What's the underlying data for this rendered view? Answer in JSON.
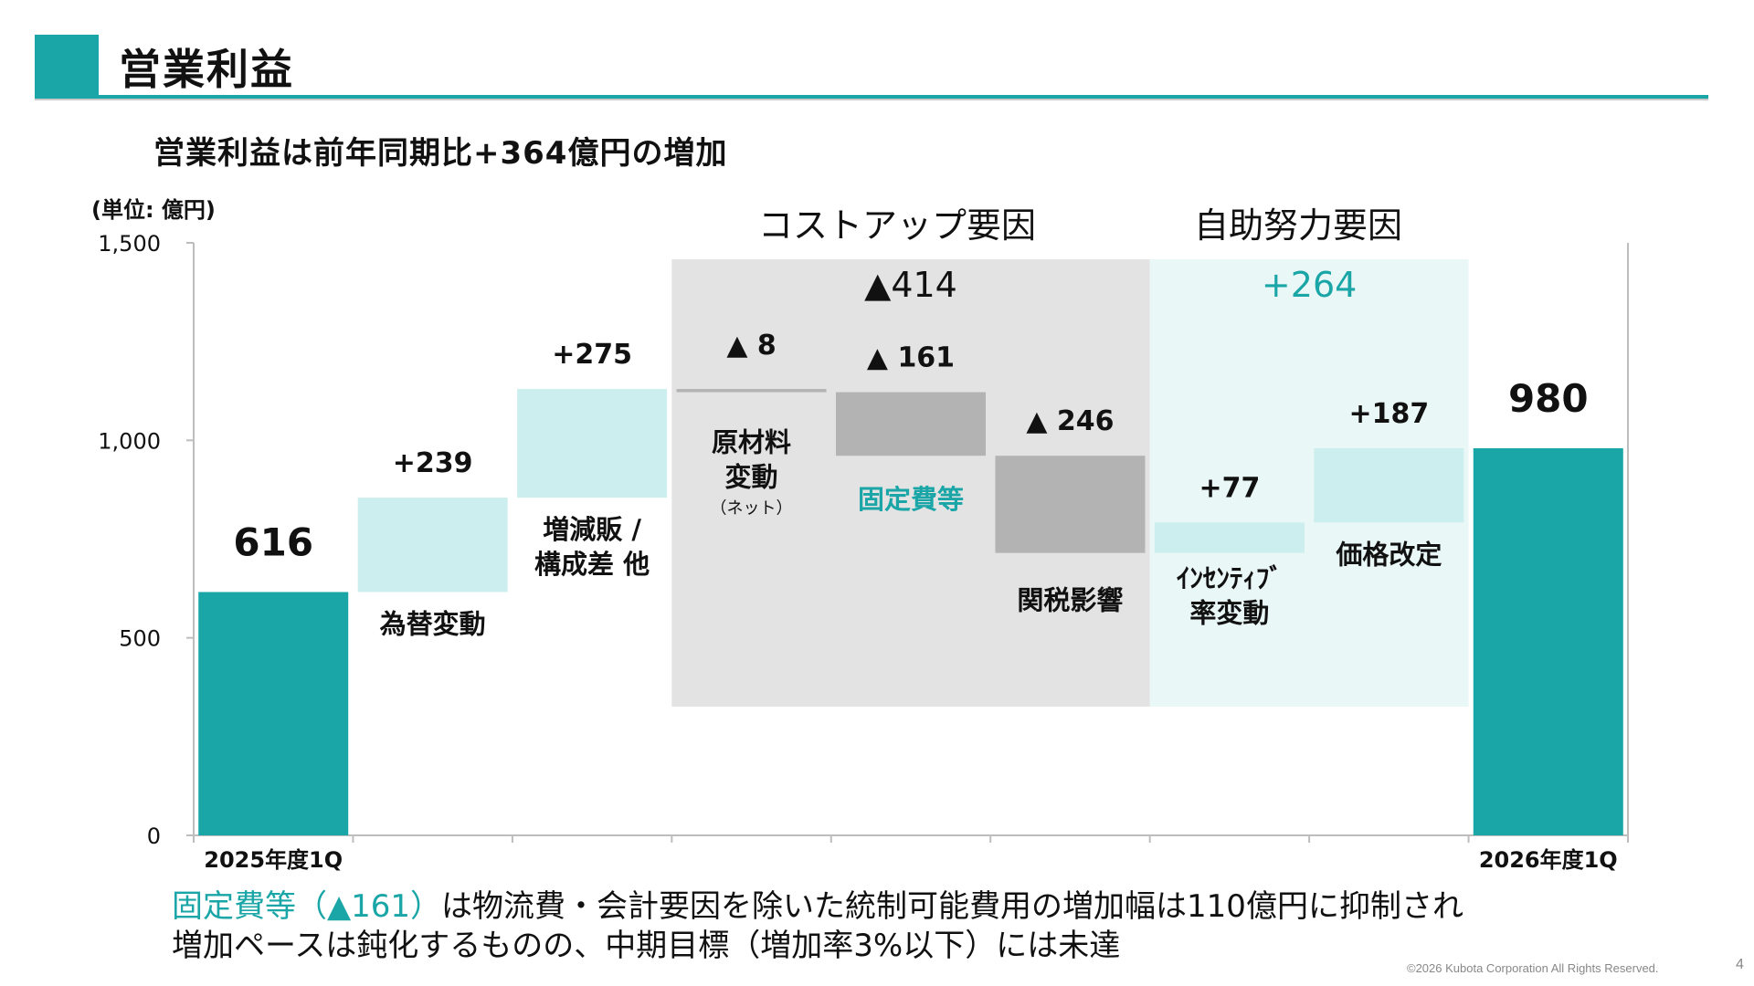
{
  "header": {
    "title": "営業利益",
    "subtitle": "営業利益は前年同期比+364億円の増加"
  },
  "colors": {
    "teal": "#1aa5a7",
    "light_teal": "#cdeeee",
    "gray_bar": "#b3b3b3",
    "cost_panel": "#e3e3e3",
    "self_panel": "#eaf7f7",
    "highlight_text": "#1aa5a7"
  },
  "chart_data": {
    "type": "bar",
    "subtype": "waterfall",
    "unit_label": "(単位: 億円)",
    "ylim": [
      0,
      1500
    ],
    "yticks": [
      "0",
      "500",
      "1,000",
      "1,500"
    ],
    "ytick_values": [
      0,
      500,
      1000,
      1500
    ],
    "grid": false,
    "x_end_labels": [
      "2025年度1Q",
      "2026年度1Q"
    ],
    "steps": [
      {
        "name": "2025年度1Q",
        "kind": "total",
        "start": 0,
        "end": 616,
        "value_label": "616",
        "style": "teal",
        "category_lines": []
      },
      {
        "name": "為替変動",
        "kind": "increase",
        "start": 616,
        "end": 855,
        "value_label": "+239",
        "style": "light",
        "category_lines": [
          "為替変動"
        ]
      },
      {
        "name": "増減販 / 構成差 他",
        "kind": "increase",
        "start": 855,
        "end": 1130,
        "value_label": "+275",
        "style": "light",
        "category_lines": [
          "増減販 /",
          "構成差 他"
        ]
      },
      {
        "name": "原材料変動(ネット)",
        "kind": "decrease",
        "start": 1130,
        "end": 1122,
        "value_label": "▲ 8",
        "style": "gray",
        "category_lines": [
          "原材料",
          "変動"
        ],
        "category_sub": "（ネット）"
      },
      {
        "name": "固定費等",
        "kind": "decrease",
        "start": 1122,
        "end": 961,
        "value_label": "▲ 161",
        "style": "gray",
        "category_lines": [
          "固定費等"
        ],
        "category_highlight": true
      },
      {
        "name": "関税影響",
        "kind": "decrease",
        "start": 961,
        "end": 715,
        "value_label": "▲ 246",
        "style": "gray",
        "category_lines": [
          "関税影響"
        ]
      },
      {
        "name": "ｲﾝｾﾝﾃｨﾌﾞ率変動",
        "kind": "increase",
        "start": 715,
        "end": 792,
        "value_label": "+77",
        "style": "light",
        "category_lines": [
          "ｲﾝｾﾝﾃｨﾌﾞ",
          "率変動"
        ]
      },
      {
        "name": "価格改定",
        "kind": "increase",
        "start": 792,
        "end": 980,
        "value_label": "+187",
        "style": "light",
        "category_lines": [
          "価格改定"
        ]
      },
      {
        "name": "2026年度1Q",
        "kind": "total",
        "start": 0,
        "end": 980,
        "value_label": "980",
        "style": "teal",
        "category_lines": []
      }
    ],
    "groups": [
      {
        "label": "コストアップ要因",
        "total_label": "▲414",
        "from_step": 3,
        "to_step": 5
      },
      {
        "label": "自助努力要因",
        "total_label": "+264",
        "from_step": 6,
        "to_step": 7
      }
    ]
  },
  "footer": {
    "note_highlight": "固定費等（▲161）",
    "note_line1_rest": "は物流費・会計要因を除いた統制可能費用の増加幅は110億円に抑制され",
    "note_line2": "増加ペースは鈍化するものの、中期目標（増加率3%以下）には未達",
    "copyright": "©2026 Kubota Corporation All Rights Reserved.",
    "page_number": "4"
  }
}
